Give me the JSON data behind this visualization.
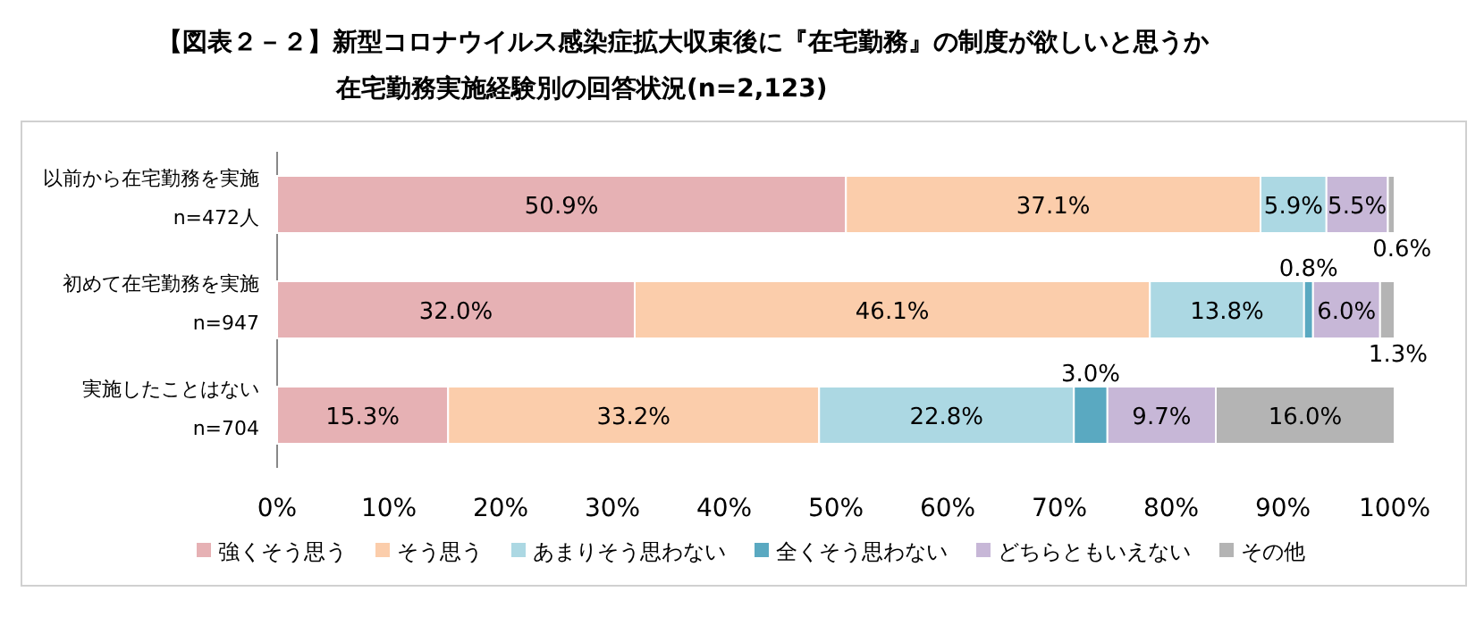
{
  "chart_data": {
    "type": "bar",
    "orientation": "horizontal",
    "stacked": true,
    "title": "【図表２－２】新型コロナウイルス感染症拡大収束後に『在宅勤務』の制度が欲しいと思うか",
    "subtitle": "在宅勤務実施経験別の回答状況(n=2,123)",
    "categories": [
      "以前から在宅勤務を実施\nn=472人",
      "初めて在宅勤務を実施\nn=947",
      "実施したことはない\nn=704"
    ],
    "series": [
      {
        "name": "強くそう思う",
        "color": "#e6b1b4",
        "values": [
          50.9,
          32.0,
          15.3
        ],
        "value_labels": [
          "50.9%",
          "32.0%",
          "15.3%"
        ]
      },
      {
        "name": "そう思う",
        "color": "#fbcdab",
        "values": [
          37.1,
          46.1,
          33.2
        ],
        "value_labels": [
          "37.1%",
          "46.1%",
          "33.2%"
        ]
      },
      {
        "name": "あまりそう思わない",
        "color": "#acd8e3",
        "values": [
          5.9,
          13.8,
          22.8
        ],
        "value_labels": [
          "5.9%",
          "13.8%",
          "22.8%"
        ]
      },
      {
        "name": "全くそう思わない",
        "color": "#5aa9c1",
        "values": [
          0,
          0.8,
          3.0
        ],
        "value_labels": [
          null,
          "0.8%",
          "3.0%"
        ]
      },
      {
        "name": "どちらともいえない",
        "color": "#c7b7d7",
        "values": [
          5.5,
          6.0,
          9.7
        ],
        "value_labels": [
          "5.5%",
          "6.0%",
          "9.7%"
        ]
      },
      {
        "name": "その他",
        "color": "#b4b4b4",
        "values": [
          0.6,
          1.3,
          16.0
        ],
        "value_labels": [
          "0.6%",
          "1.3%",
          "16.0%"
        ]
      }
    ],
    "xlim": [
      0,
      100
    ],
    "xticks": [
      {
        "value": 0,
        "label": "0%"
      },
      {
        "value": 10,
        "label": "10%"
      },
      {
        "value": 20,
        "label": "20%"
      },
      {
        "value": 30,
        "label": "30%"
      },
      {
        "value": 40,
        "label": "40%"
      },
      {
        "value": 50,
        "label": "50%"
      },
      {
        "value": 60,
        "label": "60%"
      },
      {
        "value": 70,
        "label": "70%"
      },
      {
        "value": 80,
        "label": "80%"
      },
      {
        "value": 90,
        "label": "90%"
      },
      {
        "value": 100,
        "label": "100%"
      }
    ],
    "legend": "bottom",
    "grid": false
  }
}
